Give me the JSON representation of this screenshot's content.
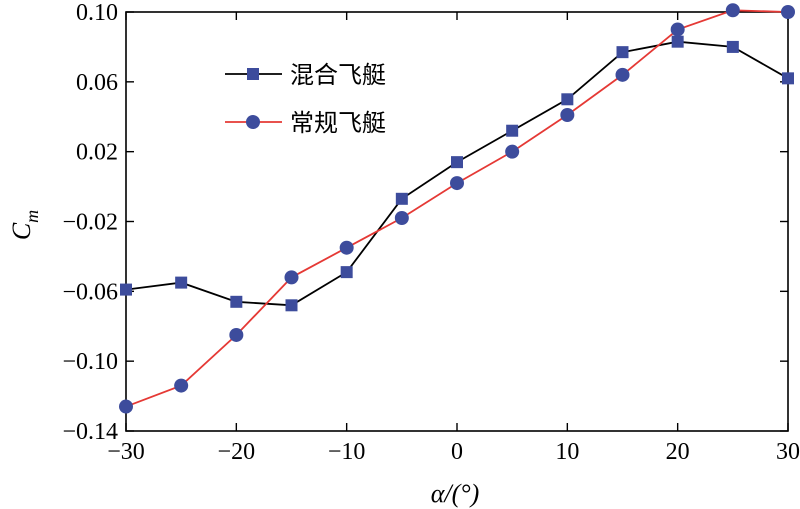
{
  "chart_data": {
    "type": "line",
    "title": "",
    "xlabel": "α/(°)",
    "ylabel": "C_m",
    "ylabel_main": "C",
    "ylabel_sub": "m",
    "xlim": [
      -30,
      30
    ],
    "ylim": [
      -0.14,
      0.1
    ],
    "xticks": [
      -30,
      -20,
      -10,
      0,
      10,
      20,
      30
    ],
    "xtick_labels": [
      "−30",
      "−20",
      "−10",
      "0",
      "10",
      "20",
      "30"
    ],
    "yticks": [
      0.1,
      0.06,
      0.02,
      -0.02,
      -0.06,
      -0.1,
      -0.14
    ],
    "ytick_labels": [
      "0.10",
      "0.06",
      "0.02",
      "−0.02",
      "−0.06",
      "−0.10",
      "−0.14"
    ],
    "grid": false,
    "legend_position": "top-left",
    "series": [
      {
        "name": "混合飞艇",
        "color": "#000000",
        "marker": "square",
        "marker_color": "#3d4c9c",
        "x": [
          -30,
          -25,
          -20,
          -15,
          -10,
          -5,
          0,
          5,
          10,
          15,
          20,
          25,
          30
        ],
        "y": [
          -0.059,
          -0.055,
          -0.066,
          -0.068,
          -0.049,
          -0.007,
          0.014,
          0.032,
          0.05,
          0.077,
          0.083,
          0.08,
          0.062
        ]
      },
      {
        "name": "常规飞艇",
        "color": "#e53935",
        "marker": "circle",
        "marker_color": "#3d4c9c",
        "x": [
          -30,
          -25,
          -20,
          -15,
          -10,
          -5,
          0,
          5,
          10,
          15,
          20,
          25,
          30
        ],
        "y": [
          -0.126,
          -0.114,
          -0.085,
          -0.052,
          -0.035,
          -0.018,
          0.002,
          0.02,
          0.041,
          0.064,
          0.09,
          0.101,
          0.1
        ]
      }
    ]
  }
}
